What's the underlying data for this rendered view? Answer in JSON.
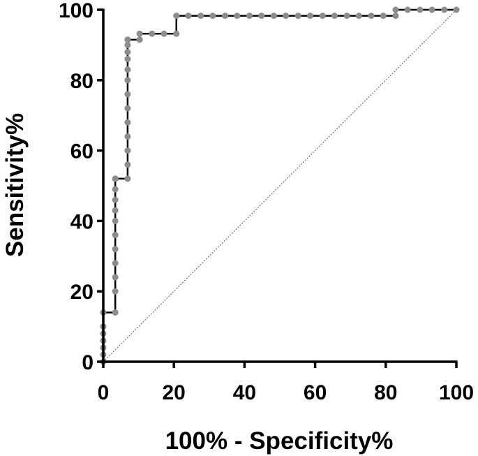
{
  "chart_data": {
    "type": "line",
    "title": "",
    "xlabel": "100% - Specificity%",
    "ylabel": "Sensitivity%",
    "xlim": [
      0,
      100
    ],
    "ylim": [
      0,
      100
    ],
    "xticks": [
      0,
      20,
      40,
      60,
      80,
      100
    ],
    "yticks": [
      0,
      20,
      40,
      60,
      80,
      100
    ],
    "grid": false,
    "legend": "none",
    "reference_line": {
      "x": [
        0,
        100
      ],
      "y": [
        0,
        100
      ],
      "style": "dotted"
    },
    "series": [
      {
        "x": [
          0,
          0,
          0,
          0,
          0,
          0,
          0,
          3.4,
          3.4,
          3.4,
          3.4,
          3.4,
          3.4,
          3.4,
          3.4,
          3.4,
          3.4,
          3.4,
          3.4,
          6.9,
          6.9,
          6.9,
          6.9,
          6.9,
          6.9,
          6.9,
          6.9,
          6.9,
          6.9,
          6.9,
          6.9,
          6.9,
          6.9,
          10.3,
          10.3,
          13.8,
          17.2,
          20.7,
          20.7,
          24.1,
          27.6,
          31,
          34.5,
          37.9,
          41.4,
          44.8,
          48.3,
          51.7,
          55.2,
          58.6,
          62.1,
          65.5,
          69,
          72.4,
          75.9,
          79.3,
          82.8,
          82.8,
          86.2,
          89.7,
          93.1,
          96.6,
          100
        ],
        "y": [
          0,
          2,
          4,
          6,
          8,
          10,
          14,
          14,
          20,
          24,
          28,
          32,
          36,
          40,
          43,
          46,
          49,
          52,
          52,
          52,
          56,
          60,
          64,
          68,
          72,
          76,
          80,
          83,
          86,
          88,
          90,
          91.5,
          91.5,
          91.5,
          93.2,
          93.2,
          93.2,
          93.2,
          98.3,
          98.3,
          98.3,
          98.3,
          98.3,
          98.3,
          98.3,
          98.3,
          98.3,
          98.3,
          98.3,
          98.3,
          98.3,
          98.3,
          98.3,
          98.3,
          98.3,
          98.3,
          98.3,
          100,
          100,
          100,
          100,
          100,
          100
        ],
        "marker_color": "#8c8c8c",
        "line_color": "#000000"
      }
    ]
  }
}
